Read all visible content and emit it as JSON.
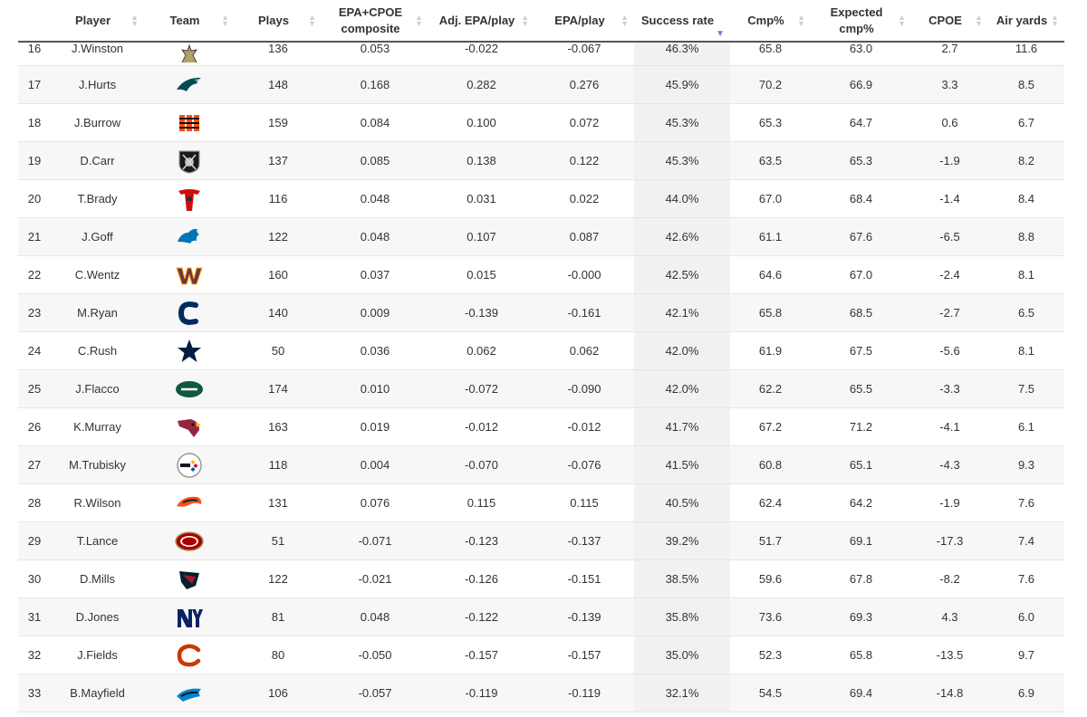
{
  "columns": [
    {
      "key": "rank",
      "label": ""
    },
    {
      "key": "player",
      "label": "Player"
    },
    {
      "key": "team",
      "label": "Team"
    },
    {
      "key": "plays",
      "label": "Plays"
    },
    {
      "key": "composite",
      "label": "EPA+CPOE composite"
    },
    {
      "key": "adj_epa",
      "label": "Adj. EPA/play"
    },
    {
      "key": "epa",
      "label": "EPA/play"
    },
    {
      "key": "success",
      "label": "Success rate"
    },
    {
      "key": "cmp",
      "label": "Cmp%"
    },
    {
      "key": "exp_cmp",
      "label": "Expected cmp%"
    },
    {
      "key": "cpoe",
      "label": "CPOE"
    },
    {
      "key": "air",
      "label": "Air yards"
    }
  ],
  "sorted_column": "success",
  "rows": [
    {
      "rank": "16",
      "player": "J.Winston",
      "team": "NO",
      "team_icon": "saints-logo-icon",
      "team_color": "#b59f6a",
      "plays": "136",
      "composite": "0.053",
      "adj_epa": "-0.022",
      "epa": "-0.067",
      "success": "46.3%",
      "cmp": "65.8",
      "exp_cmp": "63.0",
      "cpoe": "2.7",
      "air": "11.6"
    },
    {
      "rank": "17",
      "player": "J.Hurts",
      "team": "PHI",
      "team_icon": "eagles-logo-icon",
      "team_color": "#004c54",
      "plays": "148",
      "composite": "0.168",
      "adj_epa": "0.282",
      "epa": "0.276",
      "success": "45.9%",
      "cmp": "70.2",
      "exp_cmp": "66.9",
      "cpoe": "3.3",
      "air": "8.5"
    },
    {
      "rank": "18",
      "player": "J.Burrow",
      "team": "CIN",
      "team_icon": "bengals-logo-icon",
      "team_color": "#fb4f14",
      "plays": "159",
      "composite": "0.084",
      "adj_epa": "0.100",
      "epa": "0.072",
      "success": "45.3%",
      "cmp": "65.3",
      "exp_cmp": "64.7",
      "cpoe": "0.6",
      "air": "6.7"
    },
    {
      "rank": "19",
      "player": "D.Carr",
      "team": "LV",
      "team_icon": "raiders-logo-icon",
      "team_color": "#1a1a1a",
      "plays": "137",
      "composite": "0.085",
      "adj_epa": "0.138",
      "epa": "0.122",
      "success": "45.3%",
      "cmp": "63.5",
      "exp_cmp": "65.3",
      "cpoe": "-1.9",
      "air": "8.2"
    },
    {
      "rank": "20",
      "player": "T.Brady",
      "team": "TB",
      "team_icon": "buccaneers-logo-icon",
      "team_color": "#d50a0a",
      "plays": "116",
      "composite": "0.048",
      "adj_epa": "0.031",
      "epa": "0.022",
      "success": "44.0%",
      "cmp": "67.0",
      "exp_cmp": "68.4",
      "cpoe": "-1.4",
      "air": "8.4"
    },
    {
      "rank": "21",
      "player": "J.Goff",
      "team": "DET",
      "team_icon": "lions-logo-icon",
      "team_color": "#0076b6",
      "plays": "122",
      "composite": "0.048",
      "adj_epa": "0.107",
      "epa": "0.087",
      "success": "42.6%",
      "cmp": "61.1",
      "exp_cmp": "67.6",
      "cpoe": "-6.5",
      "air": "8.8"
    },
    {
      "rank": "22",
      "player": "C.Wentz",
      "team": "WAS",
      "team_icon": "commanders-logo-icon",
      "team_color": "#773141",
      "plays": "160",
      "composite": "0.037",
      "adj_epa": "0.015",
      "epa": "-0.000",
      "success": "42.5%",
      "cmp": "64.6",
      "exp_cmp": "67.0",
      "cpoe": "-2.4",
      "air": "8.1"
    },
    {
      "rank": "23",
      "player": "M.Ryan",
      "team": "IND",
      "team_icon": "colts-logo-icon",
      "team_color": "#002c5f",
      "plays": "140",
      "composite": "0.009",
      "adj_epa": "-0.139",
      "epa": "-0.161",
      "success": "42.1%",
      "cmp": "65.8",
      "exp_cmp": "68.5",
      "cpoe": "-2.7",
      "air": "6.5"
    },
    {
      "rank": "24",
      "player": "C.Rush",
      "team": "DAL",
      "team_icon": "cowboys-logo-icon",
      "team_color": "#041e42",
      "plays": "50",
      "composite": "0.036",
      "adj_epa": "0.062",
      "epa": "0.062",
      "success": "42.0%",
      "cmp": "61.9",
      "exp_cmp": "67.5",
      "cpoe": "-5.6",
      "air": "8.1"
    },
    {
      "rank": "25",
      "player": "J.Flacco",
      "team": "NYJ",
      "team_icon": "jets-logo-icon",
      "team_color": "#125740",
      "plays": "174",
      "composite": "0.010",
      "adj_epa": "-0.072",
      "epa": "-0.090",
      "success": "42.0%",
      "cmp": "62.2",
      "exp_cmp": "65.5",
      "cpoe": "-3.3",
      "air": "7.5"
    },
    {
      "rank": "26",
      "player": "K.Murray",
      "team": "ARI",
      "team_icon": "cardinals-logo-icon",
      "team_color": "#97233f",
      "plays": "163",
      "composite": "0.019",
      "adj_epa": "-0.012",
      "epa": "-0.012",
      "success": "41.7%",
      "cmp": "67.2",
      "exp_cmp": "71.2",
      "cpoe": "-4.1",
      "air": "6.1"
    },
    {
      "rank": "27",
      "player": "M.Trubisky",
      "team": "PIT",
      "team_icon": "steelers-logo-icon",
      "team_color": "#101820",
      "plays": "118",
      "composite": "0.004",
      "adj_epa": "-0.070",
      "epa": "-0.076",
      "success": "41.5%",
      "cmp": "60.8",
      "exp_cmp": "65.1",
      "cpoe": "-4.3",
      "air": "9.3"
    },
    {
      "rank": "28",
      "player": "R.Wilson",
      "team": "DEN",
      "team_icon": "broncos-logo-icon",
      "team_color": "#fb4f14",
      "plays": "131",
      "composite": "0.076",
      "adj_epa": "0.115",
      "epa": "0.115",
      "success": "40.5%",
      "cmp": "62.4",
      "exp_cmp": "64.2",
      "cpoe": "-1.9",
      "air": "7.6"
    },
    {
      "rank": "29",
      "player": "T.Lance",
      "team": "SF",
      "team_icon": "49ers-logo-icon",
      "team_color": "#aa0000",
      "plays": "51",
      "composite": "-0.071",
      "adj_epa": "-0.123",
      "epa": "-0.137",
      "success": "39.2%",
      "cmp": "51.7",
      "exp_cmp": "69.1",
      "cpoe": "-17.3",
      "air": "7.4"
    },
    {
      "rank": "30",
      "player": "D.Mills",
      "team": "HOU",
      "team_icon": "texans-logo-icon",
      "team_color": "#03202f",
      "plays": "122",
      "composite": "-0.021",
      "adj_epa": "-0.126",
      "epa": "-0.151",
      "success": "38.5%",
      "cmp": "59.6",
      "exp_cmp": "67.8",
      "cpoe": "-8.2",
      "air": "7.6"
    },
    {
      "rank": "31",
      "player": "D.Jones",
      "team": "NYG",
      "team_icon": "giants-logo-icon",
      "team_color": "#0b2265",
      "plays": "81",
      "composite": "0.048",
      "adj_epa": "-0.122",
      "epa": "-0.139",
      "success": "35.8%",
      "cmp": "73.6",
      "exp_cmp": "69.3",
      "cpoe": "4.3",
      "air": "6.0"
    },
    {
      "rank": "32",
      "player": "J.Fields",
      "team": "CHI",
      "team_icon": "bears-logo-icon",
      "team_color": "#c83803",
      "plays": "80",
      "composite": "-0.050",
      "adj_epa": "-0.157",
      "epa": "-0.157",
      "success": "35.0%",
      "cmp": "52.3",
      "exp_cmp": "65.8",
      "cpoe": "-13.5",
      "air": "9.7"
    },
    {
      "rank": "33",
      "player": "B.Mayfield",
      "team": "CAR",
      "team_icon": "panthers-logo-icon",
      "team_color": "#0085ca",
      "plays": "106",
      "composite": "-0.057",
      "adj_epa": "-0.119",
      "epa": "-0.119",
      "success": "32.1%",
      "cmp": "54.5",
      "exp_cmp": "69.4",
      "cpoe": "-14.8",
      "air": "6.9"
    }
  ]
}
